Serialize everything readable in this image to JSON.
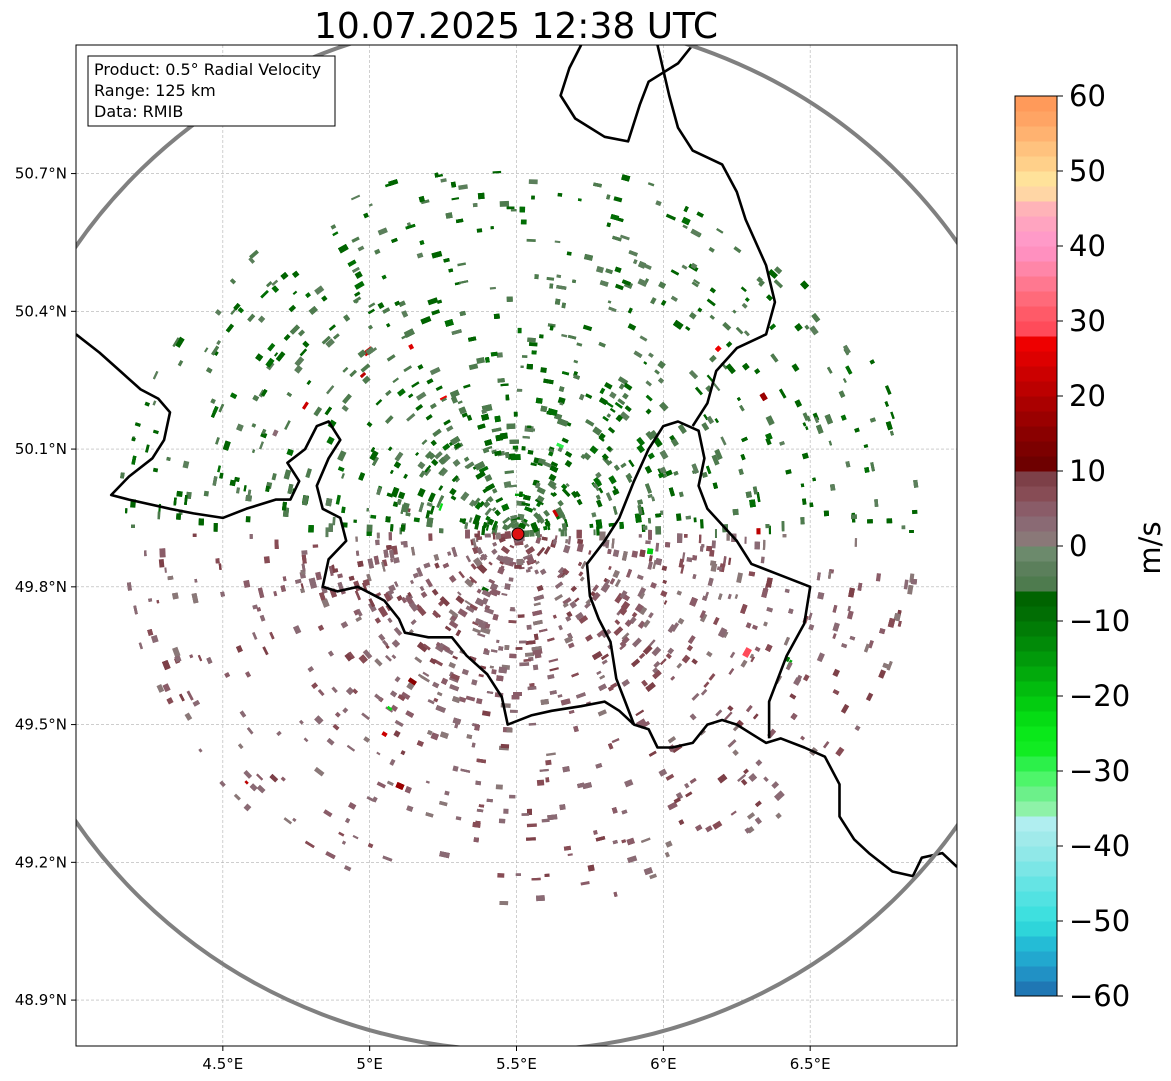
{
  "chart_data": {
    "type": "heatmap",
    "subtype": "radar-ppi-map",
    "title": "10.07.2025 12:38 UTC",
    "info_box": [
      "Product: 0.5° Radial Velocity",
      "Range: 125 km",
      "Data: RMIB"
    ],
    "xlim": [
      4.0,
      7.0
    ],
    "ylim": [
      48.8,
      50.98
    ],
    "x_ticks": [
      {
        "value": 4.5,
        "label": "4.5°E"
      },
      {
        "value": 5.0,
        "label": "5°E"
      },
      {
        "value": 5.5,
        "label": "5.5°E"
      },
      {
        "value": 6.0,
        "label": "6°E"
      },
      {
        "value": 6.5,
        "label": "6.5°E"
      }
    ],
    "y_ticks": [
      {
        "value": 48.9,
        "label": "48.9°N"
      },
      {
        "value": 49.2,
        "label": "49.2°N"
      },
      {
        "value": 49.5,
        "label": "49.5°N"
      },
      {
        "value": 49.8,
        "label": "49.8°N"
      },
      {
        "value": 50.1,
        "label": "50.1°N"
      },
      {
        "value": 50.4,
        "label": "50.4°N"
      },
      {
        "value": 50.7,
        "label": "50.7°N"
      }
    ],
    "radar_site": {
      "lon": 5.505,
      "lat": 49.915
    },
    "range_ring": {
      "center_lon": 5.505,
      "center_lat": 49.915,
      "radius_deg_lat": 1.125
    },
    "colorbar": {
      "label": "m/s",
      "min": -60,
      "max": 60,
      "ticks": [
        {
          "value": 60,
          "label": "60"
        },
        {
          "value": 50,
          "label": "50"
        },
        {
          "value": 40,
          "label": "40"
        },
        {
          "value": 30,
          "label": "30"
        },
        {
          "value": 20,
          "label": "20"
        },
        {
          "value": 10,
          "label": "10"
        },
        {
          "value": 0,
          "label": "0"
        },
        {
          "value": -10,
          "label": "−10"
        },
        {
          "value": -20,
          "label": "−20"
        },
        {
          "value": -30,
          "label": "−30"
        },
        {
          "value": -40,
          "label": "−40"
        },
        {
          "value": -50,
          "label": "−50"
        },
        {
          "value": -60,
          "label": "−60"
        }
      ],
      "bins": [
        {
          "from": -60,
          "to": -58,
          "color": "#1f77b4"
        },
        {
          "from": -58,
          "to": -56,
          "color": "#2191c5"
        },
        {
          "from": -56,
          "to": -54,
          "color": "#22a8cf"
        },
        {
          "from": -54,
          "to": -52,
          "color": "#24bcd6"
        },
        {
          "from": -52,
          "to": -50,
          "color": "#2ed5da"
        },
        {
          "from": -50,
          "to": -48,
          "color": "#3ee0df"
        },
        {
          "from": -48,
          "to": -46,
          "color": "#52e2e2"
        },
        {
          "from": -46,
          "to": -44,
          "color": "#65e4e4"
        },
        {
          "from": -44,
          "to": -42,
          "color": "#7be6e6"
        },
        {
          "from": -42,
          "to": -40,
          "color": "#90e8e8"
        },
        {
          "from": -40,
          "to": -38,
          "color": "#a0eaea"
        },
        {
          "from": -38,
          "to": -36,
          "color": "#b0eef0"
        },
        {
          "from": -36,
          "to": -34,
          "color": "#8ef2a8"
        },
        {
          "from": -34,
          "to": -32,
          "color": "#6cf08a"
        },
        {
          "from": -32,
          "to": -30,
          "color": "#4ef56a"
        },
        {
          "from": -30,
          "to": -28,
          "color": "#2cf04a"
        },
        {
          "from": -28,
          "to": -26,
          "color": "#11ec22"
        },
        {
          "from": -26,
          "to": -24,
          "color": "#0ae81a"
        },
        {
          "from": -24,
          "to": -22,
          "color": "#05dc14"
        },
        {
          "from": -22,
          "to": -20,
          "color": "#03cc10"
        },
        {
          "from": -20,
          "to": -18,
          "color": "#02bc0e"
        },
        {
          "from": -18,
          "to": -16,
          "color": "#02aa0c"
        },
        {
          "from": -16,
          "to": -14,
          "color": "#019a0a"
        },
        {
          "from": -14,
          "to": -12,
          "color": "#018a08"
        },
        {
          "from": -12,
          "to": -10,
          "color": "#017c06"
        },
        {
          "from": -10,
          "to": -8,
          "color": "#016e04"
        },
        {
          "from": -8,
          "to": -6,
          "color": "#006400"
        },
        {
          "from": -6,
          "to": -4,
          "color": "#4e7b4e"
        },
        {
          "from": -4,
          "to": -2,
          "color": "#5b7f5b"
        },
        {
          "from": -2,
          "to": 0,
          "color": "#6c8a6c"
        },
        {
          "from": 0,
          "to": 2,
          "color": "#8a7878"
        },
        {
          "from": 2,
          "to": 4,
          "color": "#8a6a74"
        },
        {
          "from": 4,
          "to": 6,
          "color": "#8a5c68"
        },
        {
          "from": 6,
          "to": 8,
          "color": "#874c55"
        },
        {
          "from": 8,
          "to": 10,
          "color": "#7d4048"
        },
        {
          "from": 10,
          "to": 12,
          "color": "#6e0000"
        },
        {
          "from": 12,
          "to": 14,
          "color": "#7c0000"
        },
        {
          "from": 14,
          "to": 16,
          "color": "#8a0000"
        },
        {
          "from": 16,
          "to": 18,
          "color": "#9a0000"
        },
        {
          "from": 18,
          "to": 20,
          "color": "#aa0000"
        },
        {
          "from": 20,
          "to": 22,
          "color": "#bc0000"
        },
        {
          "from": 22,
          "to": 24,
          "color": "#cc0000"
        },
        {
          "from": 24,
          "to": 26,
          "color": "#dd0000"
        },
        {
          "from": 26,
          "to": 28,
          "color": "#ee0000"
        },
        {
          "from": 28,
          "to": 30,
          "color": "#ff4b5a"
        },
        {
          "from": 30,
          "to": 32,
          "color": "#ff5a68"
        },
        {
          "from": 32,
          "to": 34,
          "color": "#ff6a7a"
        },
        {
          "from": 34,
          "to": 36,
          "color": "#ff7890"
        },
        {
          "from": 36,
          "to": 38,
          "color": "#ff86a8"
        },
        {
          "from": 38,
          "to": 40,
          "color": "#ff90bf"
        },
        {
          "from": 40,
          "to": 42,
          "color": "#ff9ac8"
        },
        {
          "from": 42,
          "to": 44,
          "color": "#ffa4c0"
        },
        {
          "from": 44,
          "to": 46,
          "color": "#ffb3b8"
        },
        {
          "from": 46,
          "to": 48,
          "color": "#ffd6a5"
        },
        {
          "from": 48,
          "to": 50,
          "color": "#ffe29a"
        },
        {
          "from": 50,
          "to": 52,
          "color": "#ffd08a"
        },
        {
          "from": 52,
          "to": 54,
          "color": "#ffc27e"
        },
        {
          "from": 54,
          "to": 56,
          "color": "#ffb270"
        },
        {
          "from": 56,
          "to": 58,
          "color": "#ffa464"
        },
        {
          "from": 58,
          "to": 60,
          "color": "#ff9a5a"
        }
      ]
    },
    "echo_regions": [
      {
        "name": "outbound-north",
        "sign": "negative",
        "typical_velocity": -5,
        "core_velocity": -8,
        "lat_range": [
          49.92,
          50.33
        ]
      },
      {
        "name": "inbound-south",
        "sign": "positive",
        "typical_velocity": 3,
        "core_velocity": 8,
        "lat_range": [
          49.28,
          49.92
        ]
      }
    ],
    "borders": [
      {
        "name": "belgium-france-luxembourg-west",
        "points": [
          [
            4.0,
            50.35
          ],
          [
            4.08,
            50.31
          ],
          [
            4.15,
            50.27
          ],
          [
            4.22,
            50.23
          ],
          [
            4.28,
            50.21
          ],
          [
            4.32,
            50.18
          ],
          [
            4.3,
            50.12
          ],
          [
            4.26,
            50.08
          ],
          [
            4.18,
            50.04
          ],
          [
            4.12,
            50.0
          ],
          [
            4.18,
            49.99
          ],
          [
            4.32,
            49.97
          ],
          [
            4.4,
            49.96
          ],
          [
            4.5,
            49.95
          ],
          [
            4.58,
            49.97
          ],
          [
            4.68,
            49.99
          ],
          [
            4.73,
            49.99
          ],
          [
            4.76,
            50.03
          ],
          [
            4.72,
            50.07
          ],
          [
            4.78,
            50.1
          ],
          [
            4.82,
            50.15
          ],
          [
            4.86,
            50.16
          ],
          [
            4.9,
            50.12
          ],
          [
            4.86,
            50.08
          ],
          [
            4.82,
            50.02
          ],
          [
            4.84,
            49.97
          ],
          [
            4.9,
            49.95
          ],
          [
            4.92,
            49.9
          ],
          [
            4.86,
            49.86
          ],
          [
            4.84,
            49.8
          ],
          [
            4.89,
            49.79
          ],
          [
            4.96,
            49.8
          ],
          [
            5.05,
            49.77
          ],
          [
            5.1,
            49.73
          ],
          [
            5.12,
            49.7
          ],
          [
            5.2,
            49.69
          ],
          [
            5.28,
            49.69
          ],
          [
            5.33,
            49.65
          ],
          [
            5.4,
            49.61
          ],
          [
            5.45,
            49.56
          ],
          [
            5.47,
            49.5
          ],
          [
            5.55,
            49.52
          ],
          [
            5.62,
            49.53
          ],
          [
            5.72,
            49.54
          ],
          [
            5.8,
            49.55
          ],
          [
            5.85,
            49.53
          ],
          [
            5.9,
            49.5
          ],
          [
            5.95,
            49.49
          ],
          [
            5.98,
            49.45
          ],
          [
            6.03,
            49.45
          ],
          [
            6.1,
            49.46
          ],
          [
            6.15,
            49.5
          ],
          [
            6.2,
            49.51
          ],
          [
            6.25,
            49.5
          ],
          [
            6.3,
            49.48
          ],
          [
            6.35,
            49.46
          ],
          [
            6.4,
            49.47
          ],
          [
            6.48,
            49.45
          ],
          [
            6.55,
            49.43
          ],
          [
            6.6,
            49.37
          ],
          [
            6.6,
            49.3
          ],
          [
            6.65,
            49.25
          ],
          [
            6.7,
            49.22
          ],
          [
            6.78,
            49.18
          ],
          [
            6.85,
            49.17
          ],
          [
            6.88,
            49.21
          ],
          [
            6.95,
            49.22
          ],
          [
            7.0,
            49.19
          ]
        ]
      },
      {
        "name": "luxembourg-loop",
        "points": [
          [
            5.9,
            49.5
          ],
          [
            5.87,
            49.55
          ],
          [
            5.84,
            49.6
          ],
          [
            5.82,
            49.68
          ],
          [
            5.78,
            49.73
          ],
          [
            5.75,
            49.78
          ],
          [
            5.74,
            49.85
          ],
          [
            5.8,
            49.9
          ],
          [
            5.85,
            49.95
          ],
          [
            5.9,
            50.03
          ],
          [
            5.95,
            50.1
          ],
          [
            6.0,
            50.15
          ],
          [
            6.05,
            50.16
          ],
          [
            6.12,
            50.14
          ],
          [
            6.14,
            50.08
          ],
          [
            6.12,
            50.02
          ],
          [
            6.15,
            49.97
          ],
          [
            6.25,
            49.9
          ],
          [
            6.3,
            49.85
          ],
          [
            6.38,
            49.83
          ],
          [
            6.5,
            49.8
          ],
          [
            6.48,
            49.72
          ],
          [
            6.42,
            49.65
          ],
          [
            6.36,
            49.55
          ],
          [
            6.36,
            49.47
          ]
        ]
      },
      {
        "name": "belgium-germany-east",
        "points": [
          [
            6.1,
            50.15
          ],
          [
            6.15,
            50.2
          ],
          [
            6.18,
            50.27
          ],
          [
            6.25,
            50.32
          ],
          [
            6.35,
            50.35
          ],
          [
            6.38,
            50.42
          ],
          [
            6.35,
            50.5
          ],
          [
            6.28,
            50.6
          ],
          [
            6.25,
            50.66
          ],
          [
            6.2,
            50.72
          ],
          [
            6.1,
            50.75
          ],
          [
            6.05,
            50.8
          ],
          [
            6.02,
            50.87
          ],
          [
            5.98,
            50.98
          ]
        ]
      },
      {
        "name": "netherlands-belgium-north",
        "points": [
          [
            5.72,
            50.98
          ],
          [
            5.68,
            50.93
          ],
          [
            5.65,
            50.87
          ],
          [
            5.7,
            50.82
          ],
          [
            5.8,
            50.78
          ],
          [
            5.88,
            50.77
          ],
          [
            5.92,
            50.85
          ],
          [
            5.95,
            50.9
          ],
          [
            6.05,
            50.94
          ],
          [
            6.1,
            50.98
          ]
        ]
      }
    ]
  }
}
